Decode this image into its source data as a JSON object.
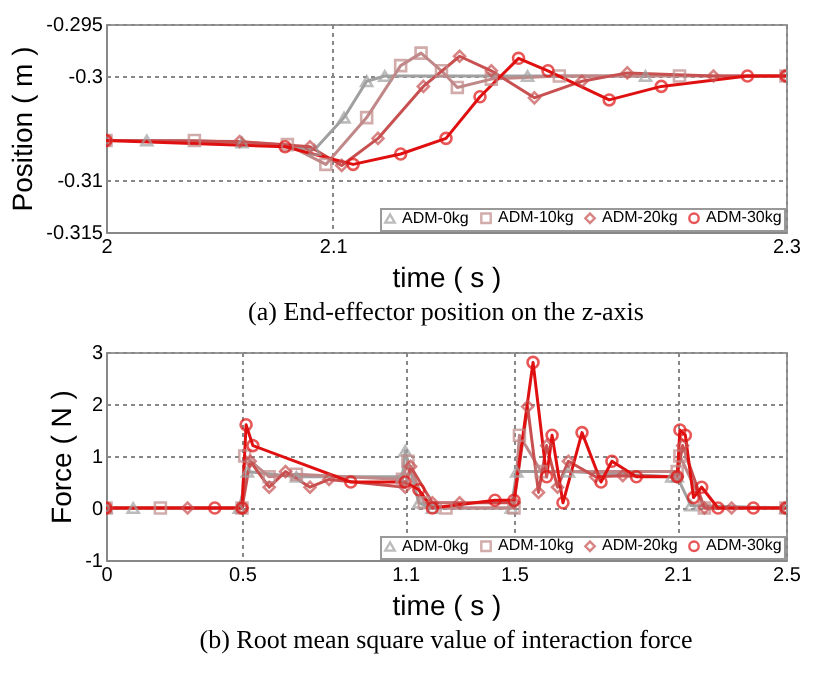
{
  "chart_data": [
    {
      "type": "line",
      "annotations": [
        "(a) End-effector position on the z-axis"
      ],
      "xlabel": "time ( s )",
      "ylabel": "Position ( m )",
      "xlim": [
        2,
        2.3
      ],
      "xticks": [
        2,
        2.1,
        2.3
      ],
      "ylim": [
        -0.315,
        -0.295
      ],
      "yticks": [
        -0.315,
        -0.31,
        -0.3,
        -0.295
      ],
      "grid": true,
      "legend": "bottom right",
      "series": [
        {
          "name": "ADM-0kg",
          "color": "#a0a0a0",
          "marker": "triangle",
          "x": [
            2.018,
            2.06,
            2.092,
            2.105,
            2.115,
            2.123,
            2.186,
            2.238
          ],
          "values": [
            -0.3062,
            -0.3064,
            -0.3071,
            -0.304,
            -0.3005,
            -0.3,
            -0.3,
            -0.3
          ]
        },
        {
          "name": "ADM-10kg",
          "color": "#c08888",
          "marker": "square",
          "x": [
            2,
            2.039,
            2.08,
            2.097,
            2.115,
            2.13,
            2.139,
            2.148,
            2.155,
            2.17,
            2.2,
            2.253,
            2.3
          ],
          "values": [
            -0.3062,
            -0.3062,
            -0.3066,
            -0.3085,
            -0.304,
            -0.299,
            -0.2978,
            -0.2995,
            -0.3011,
            -0.3003,
            -0.3,
            -0.3,
            -0.3
          ]
        },
        {
          "name": "ADM-20kg",
          "color": "#c85050",
          "marker": "diamond",
          "x": [
            2,
            2.059,
            2.09,
            2.104,
            2.12,
            2.14,
            2.156,
            2.17,
            2.189,
            2.21,
            2.23,
            2.268,
            2.3
          ],
          "values": [
            -0.3062,
            -0.3063,
            -0.3068,
            -0.3086,
            -0.306,
            -0.301,
            -0.2981,
            -0.2995,
            -0.3021,
            -0.3005,
            -0.2997,
            -0.3,
            -0.3
          ]
        },
        {
          "name": "ADM-30kg",
          "color": "#e01010",
          "marker": "circle",
          "x": [
            2,
            2.079,
            2.109,
            2.13,
            2.15,
            2.165,
            2.182,
            2.195,
            2.222,
            2.245,
            2.283,
            2.3
          ],
          "values": [
            -0.3062,
            -0.3068,
            -0.3085,
            -0.3075,
            -0.306,
            -0.302,
            -0.2983,
            -0.2995,
            -0.3023,
            -0.301,
            -0.3,
            -0.3
          ]
        }
      ]
    },
    {
      "type": "line",
      "annotations": [
        "(b) Root mean square value of interaction force"
      ],
      "xlabel": "time ( s )",
      "ylabel": "Force ( N )",
      "xlim": [
        0,
        2.5
      ],
      "xticks": [
        0,
        0.5,
        1.1,
        1.5,
        2.1,
        2.5
      ],
      "ylim": [
        -1,
        3
      ],
      "yticks": [
        -1,
        0,
        1,
        2,
        3
      ],
      "grid": true,
      "legend": "bottom right",
      "series": [
        {
          "name": "ADM-0kg",
          "color": "#a0a0a0",
          "marker": "triangle",
          "x": [
            0,
            0.1,
            0.49,
            0.52,
            0.7,
            1.09,
            1.1,
            1.15,
            1.2,
            1.49,
            1.51,
            1.7,
            2.08,
            2.1,
            2.15,
            2.5
          ],
          "values": [
            0,
            0,
            0,
            0.7,
            0.6,
            0.6,
            1.1,
            0.1,
            0,
            0,
            0.7,
            0.7,
            0.6,
            0.6,
            0.05,
            0
          ]
        },
        {
          "name": "ADM-10kg",
          "color": "#c08888",
          "marker": "square",
          "x": [
            0,
            0.2,
            0.5,
            0.51,
            0.6,
            0.7,
            1.09,
            1.11,
            1.17,
            1.25,
            1.5,
            1.52,
            1.6,
            2.1,
            2.11,
            2.2,
            2.5
          ],
          "values": [
            0,
            0,
            0,
            1,
            0.6,
            0.65,
            0.55,
            0.9,
            0.1,
            0,
            0,
            1.4,
            0.7,
            0.7,
            1,
            0,
            0
          ]
        },
        {
          "name": "ADM-20kg",
          "color": "#c85050",
          "marker": "diamond",
          "x": [
            0,
            0.3,
            0.5,
            0.53,
            0.6,
            0.66,
            0.75,
            0.82,
            1.1,
            1.12,
            1.2,
            1.3,
            1.5,
            1.55,
            1.59,
            1.62,
            1.66,
            1.7,
            1.8,
            1.9,
            2.1,
            2.12,
            2.2,
            2.3,
            2.5
          ],
          "values": [
            0,
            0,
            0,
            0.9,
            0.4,
            0.7,
            0.4,
            0.55,
            0.4,
            0.8,
            0.1,
            0.1,
            0.1,
            1.95,
            0.3,
            1.2,
            0.4,
            0.9,
            0.6,
            0.62,
            0.6,
            1.2,
            0,
            0,
            0
          ]
        },
        {
          "name": "ADM-30kg",
          "color": "#e01010",
          "marker": "circle",
          "x": [
            0,
            0.4,
            0.5,
            0.515,
            0.54,
            0.9,
            1.1,
            1.15,
            1.2,
            1.43,
            1.5,
            1.57,
            1.62,
            1.64,
            1.68,
            1.75,
            1.82,
            1.86,
            1.95,
            2.1,
            2.11,
            2.13,
            2.16,
            2.19,
            2.25,
            2.38,
            2.5
          ],
          "values": [
            0,
            0,
            0,
            1.6,
            1.2,
            0.5,
            0.5,
            0.35,
            0,
            0.15,
            0.15,
            2.8,
            0.6,
            1.4,
            0.1,
            1.45,
            0.5,
            0.9,
            0.6,
            0.6,
            1.5,
            1.4,
            0.2,
            0.4,
            0,
            0,
            0
          ]
        }
      ]
    }
  ]
}
